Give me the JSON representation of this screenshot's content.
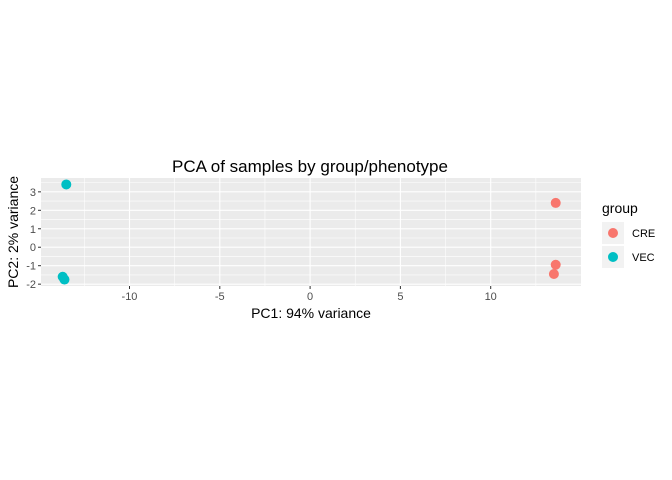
{
  "chart_data": {
    "type": "scatter",
    "title": "PCA of samples by group/phenotype",
    "xlabel": "PC1: 94% variance",
    "ylabel": "PC2: 2% variance",
    "xlim": [
      -14.9,
      15.0
    ],
    "ylim": [
      -2.1,
      3.75
    ],
    "x_ticks": [
      -10,
      -5,
      0,
      5,
      10
    ],
    "x_tick_labels": [
      "-10",
      "-5",
      "0",
      "5",
      "10"
    ],
    "y_ticks": [
      -2,
      -1,
      0,
      1,
      2,
      3
    ],
    "y_tick_labels": [
      "-2",
      "-1",
      "0",
      "1",
      "2",
      "3"
    ],
    "grid": true,
    "legend": {
      "title": "group",
      "position": "right",
      "entries": [
        {
          "label": "CRE",
          "color": "#F8766D"
        },
        {
          "label": "VEC",
          "color": "#00BFC4"
        }
      ]
    },
    "series": [
      {
        "name": "CRE",
        "color": "#F8766D",
        "points": [
          {
            "x": 13.6,
            "y": 2.4
          },
          {
            "x": 13.6,
            "y": -0.95
          },
          {
            "x": 13.5,
            "y": -1.45
          }
        ]
      },
      {
        "name": "VEC",
        "color": "#00BFC4",
        "points": [
          {
            "x": -13.5,
            "y": 3.4
          },
          {
            "x": -13.7,
            "y": -1.6
          },
          {
            "x": -13.6,
            "y": -1.75
          }
        ]
      }
    ]
  }
}
